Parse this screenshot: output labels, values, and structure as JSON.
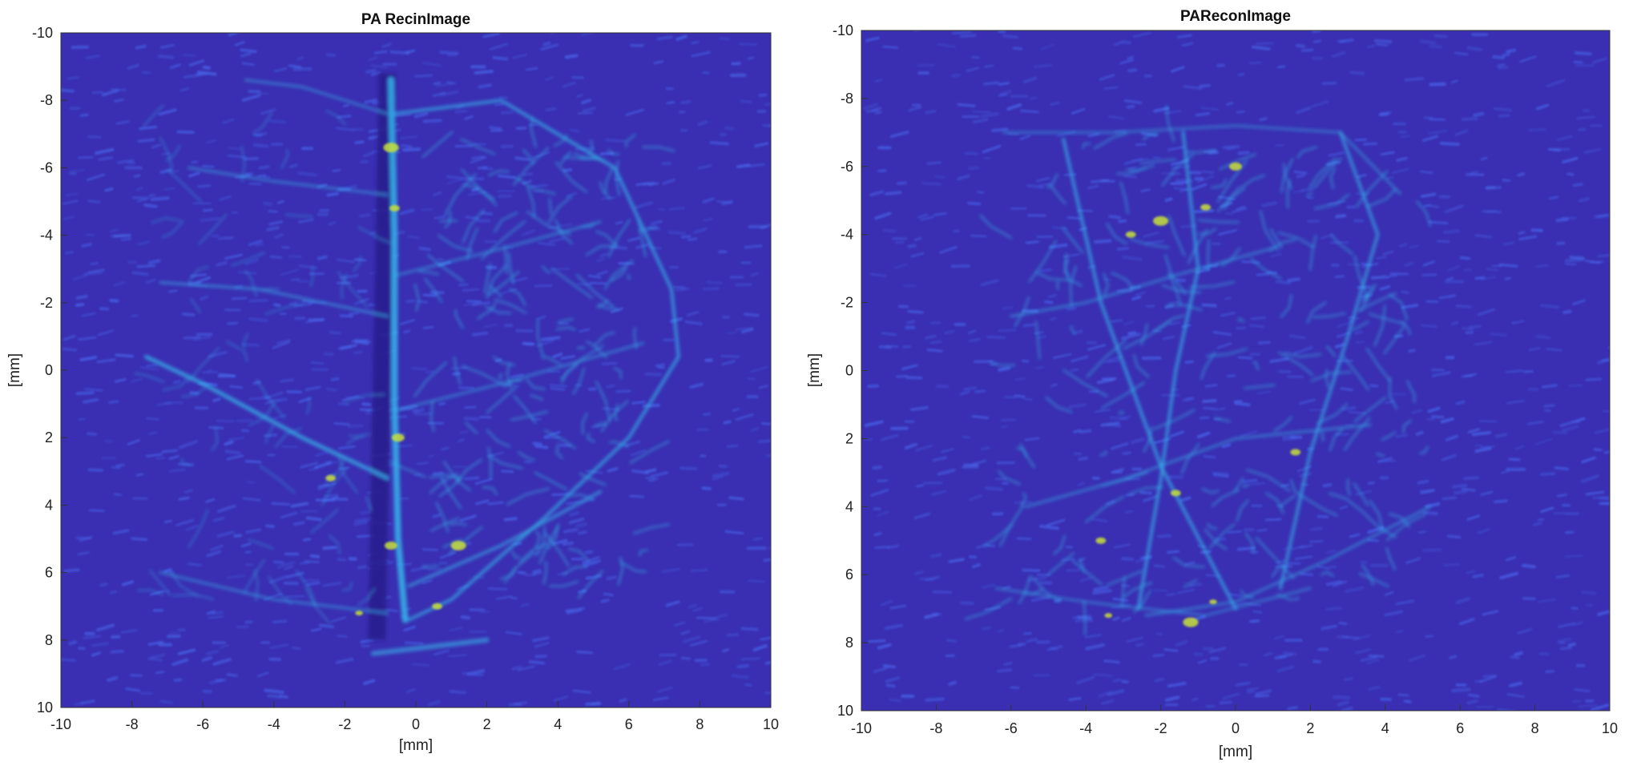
{
  "figures": [
    {
      "title": "PA RecinImage",
      "xlabel": "[mm]",
      "ylabel": "[mm]",
      "x_ticks": [
        "-10",
        "-8",
        "-6",
        "-4",
        "-2",
        "0",
        "2",
        "4",
        "6",
        "8",
        "10"
      ],
      "y_ticks": [
        "-10",
        "-8",
        "-6",
        "-4",
        "-2",
        "0",
        "2",
        "4",
        "6",
        "8",
        "10"
      ]
    },
    {
      "title": "PAReconImage",
      "xlabel": "[mm]",
      "ylabel": "[mm]",
      "x_ticks": [
        "-10",
        "-8",
        "-6",
        "-4",
        "-2",
        "0",
        "2",
        "4",
        "6",
        "8",
        "10"
      ],
      "y_ticks": [
        "-10",
        "-8",
        "-6",
        "-4",
        "-2",
        "0",
        "2",
        "4",
        "6",
        "8",
        "10"
      ]
    }
  ],
  "colors": {
    "background": "#3a2fb2",
    "speckle": "#4a6cf0",
    "vessel": "#35b4ea",
    "hot": "#c8e03a"
  }
}
